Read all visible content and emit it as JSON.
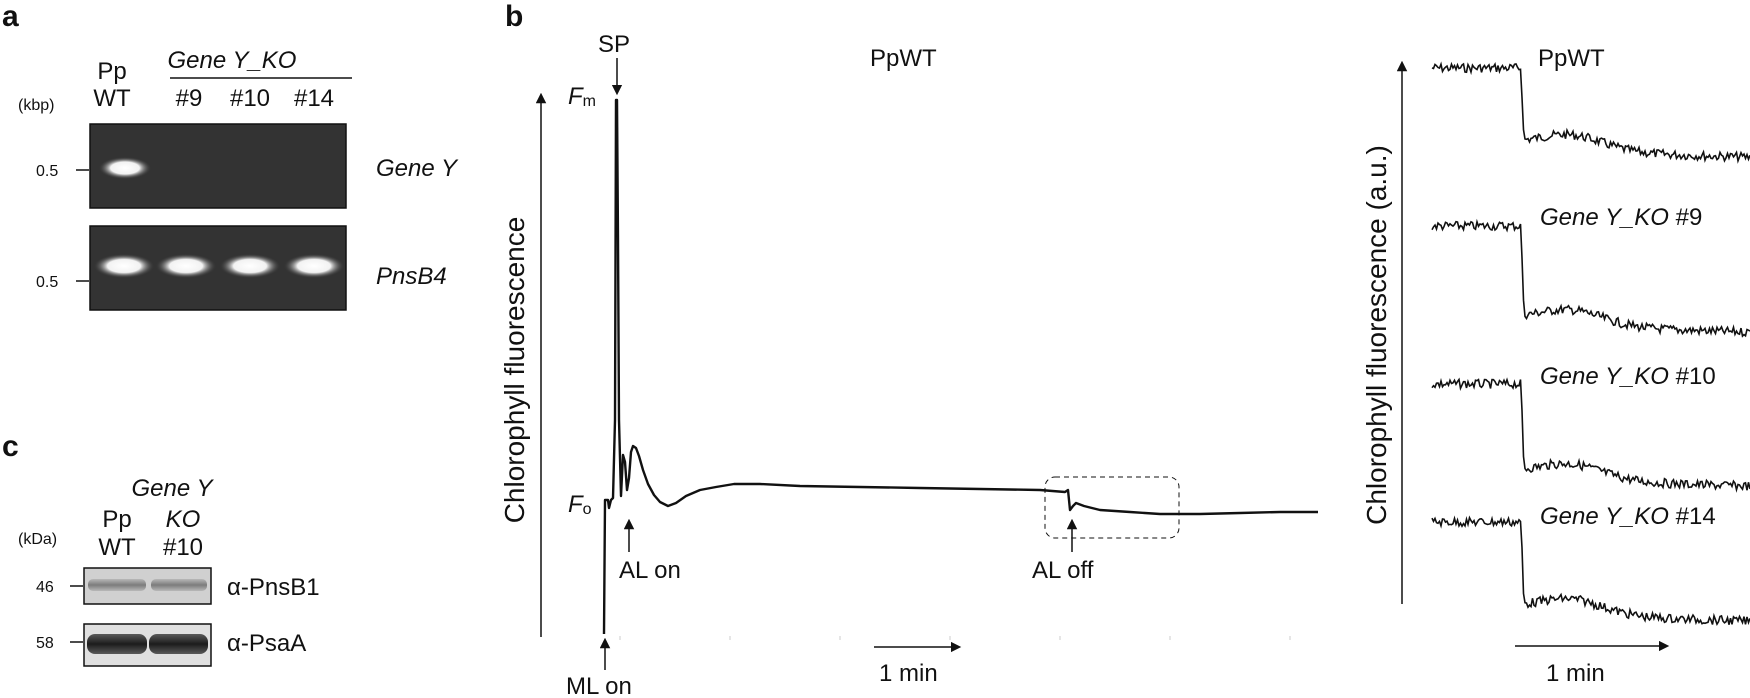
{
  "panel_a": {
    "letter": "a",
    "unit": "(kbp)",
    "size_marker_top": "0.5",
    "size_marker_bottom": "0.5",
    "lane1_top": "Pp",
    "lane1_bottom": "WT",
    "group_label": "Gene Y_KO",
    "lanes": [
      "#9",
      "#10",
      "#14"
    ],
    "row1_label": "Gene Y",
    "row2_label": "PnsB4"
  },
  "panel_b": {
    "letter": "b",
    "title": "PpWT",
    "ylabel": "Chlorophyll fluorescence",
    "sp_label": "SP",
    "fm_main": "F",
    "fm_sub": "m",
    "fo_main": "F",
    "fo_sub": "o",
    "al_on": "AL on",
    "al_off": "AL off",
    "ml_on": "ML on",
    "scale": "1 min"
  },
  "panel_b_right": {
    "ylabel": "Chlorophyll fluorescence (a.u.)",
    "traces": [
      "PpWT",
      "Gene Y_KO #9",
      "Gene Y_KO #10",
      "Gene Y_KO #14"
    ],
    "trace_plain_0": "PpWT",
    "trace_ital_1": "Gene Y_KO",
    "trace_num_1": " #9",
    "trace_ital_2": "Gene Y_KO",
    "trace_num_2": " #10",
    "trace_ital_3": "Gene Y_KO",
    "trace_num_3": " #14",
    "scale": "1 min"
  },
  "panel_c": {
    "letter": "c",
    "unit": "(kDa)",
    "group_top": "Gene Y",
    "lane1_top": "Pp",
    "lane1_bottom": "WT",
    "lane2_top": "KO",
    "lane2_bottom": "#10",
    "marker_1": "46",
    "marker_2": "58",
    "row1_label": "α-PnsB1",
    "row2_label": "α-PsaA"
  }
}
